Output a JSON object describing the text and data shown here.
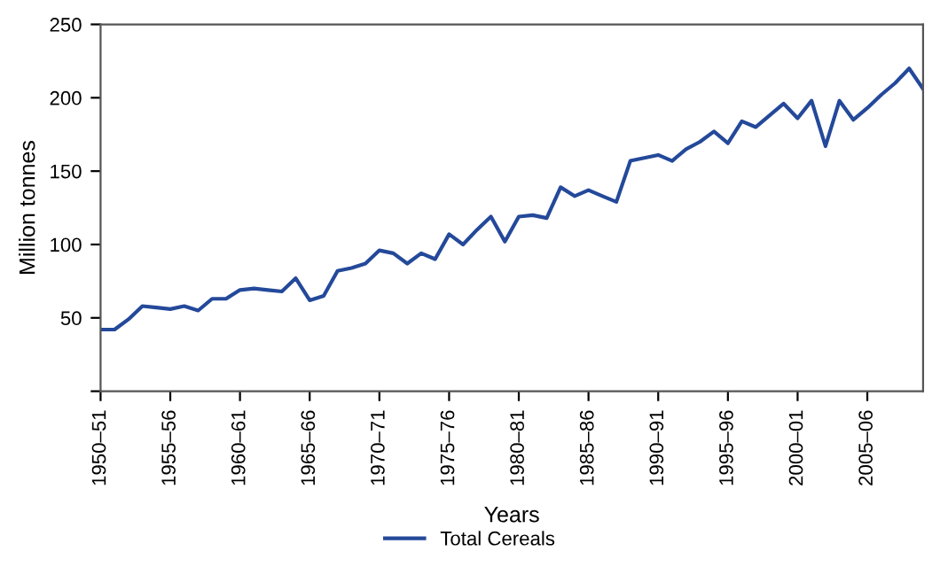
{
  "chart_data": {
    "type": "line",
    "xlabel": "Years",
    "ylabel": "Million tonnes",
    "categories": [
      "1950–51",
      null,
      null,
      null,
      null,
      "1955–56",
      null,
      null,
      null,
      null,
      "1960–61",
      null,
      null,
      null,
      null,
      "1965–66",
      null,
      null,
      null,
      null,
      "1970–71",
      null,
      null,
      null,
      null,
      "1975–76",
      null,
      null,
      null,
      null,
      "1980–81",
      null,
      null,
      null,
      null,
      "1985–86",
      null,
      null,
      null,
      null,
      "1990–91",
      null,
      null,
      null,
      null,
      "1995–96",
      null,
      null,
      null,
      null,
      "2000–01",
      null,
      null,
      null,
      null,
      "2005–06",
      null,
      null,
      null,
      null
    ],
    "series": [
      {
        "name": "Total Cereals",
        "color": "#24499a",
        "values": [
          42,
          42,
          49,
          58,
          57,
          56,
          58,
          55,
          63,
          63,
          69,
          70,
          69,
          68,
          77,
          62,
          65,
          82,
          84,
          87,
          96,
          94,
          87,
          94,
          90,
          107,
          100,
          110,
          119,
          102,
          119,
          120,
          118,
          139,
          133,
          137,
          133,
          129,
          157,
          159,
          161,
          157,
          165,
          170,
          177,
          169,
          184,
          180,
          188,
          196,
          186,
          198,
          167,
          198,
          185,
          193,
          202,
          210,
          220,
          206
        ]
      }
    ],
    "ylim": [
      0,
      250
    ],
    "yticks": [
      {
        "value": 0,
        "label": null
      },
      50,
      100,
      150,
      200,
      250
    ],
    "legend": "bottom",
    "grid": false,
    "marker": "none",
    "line_style": "solid"
  }
}
